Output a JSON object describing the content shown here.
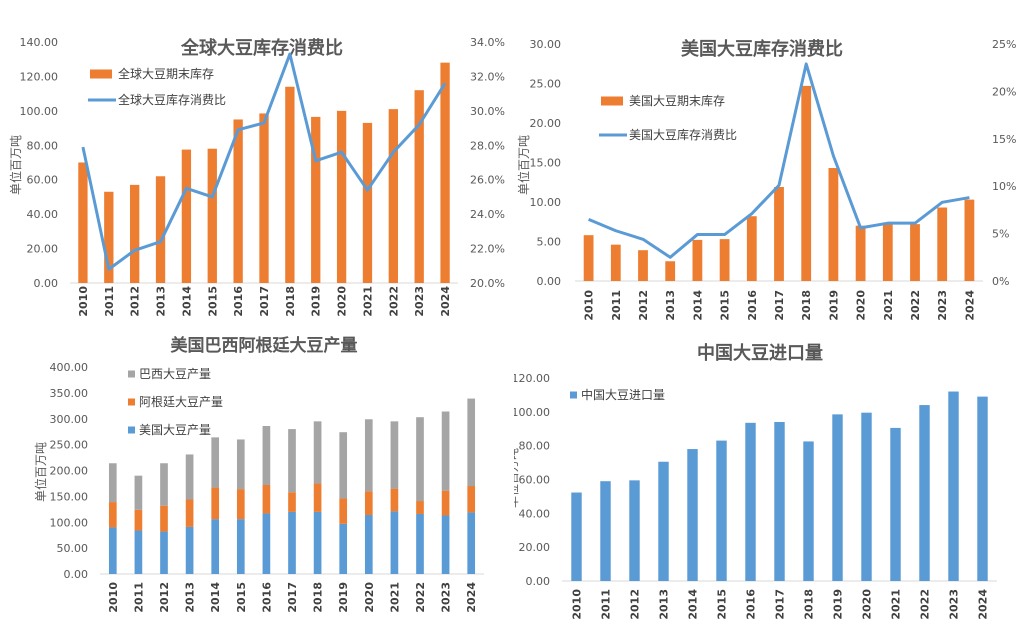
{
  "chart_data": [
    {
      "type": "bar+line",
      "title": "全球大豆库存消费比",
      "ylabel": "单位百万吨",
      "categories": [
        "2010",
        "2011",
        "2012",
        "2013",
        "2014",
        "2015",
        "2016",
        "2017",
        "2018",
        "2019",
        "2020",
        "2021",
        "2022",
        "2023",
        "2024"
      ],
      "ylim": [
        0,
        140
      ],
      "yticks": [
        "0.00",
        "20.00",
        "40.00",
        "60.00",
        "80.00",
        "100.00",
        "120.00",
        "140.00"
      ],
      "y2lim": [
        20,
        34
      ],
      "y2ticks": [
        "20.0%",
        "22.0%",
        "24.0%",
        "26.0%",
        "28.0%",
        "30.0%",
        "32.0%",
        "34.0%"
      ],
      "legend_position": "top-left",
      "series": [
        {
          "name": "全球大豆期末库存",
          "kind": "bar",
          "color": "#ED7D31",
          "values": [
            70,
            53,
            57,
            62,
            77.5,
            78,
            95,
            98.5,
            114,
            96.5,
            100,
            93,
            101,
            112,
            128
          ]
        },
        {
          "name": "全球大豆库存消费比",
          "kind": "line",
          "axis": "right",
          "color": "#5B9BD5",
          "values": [
            27.9,
            20.8,
            21.9,
            22.4,
            25.5,
            25.0,
            28.9,
            29.3,
            33.3,
            27.1,
            27.6,
            25.4,
            27.6,
            29.2,
            31.6
          ]
        }
      ]
    },
    {
      "type": "bar+line",
      "title": "美国大豆库存消费比",
      "ylabel": "单位百万吨",
      "categories": [
        "2010",
        "2011",
        "2012",
        "2013",
        "2014",
        "2015",
        "2016",
        "2017",
        "2018",
        "2019",
        "2020",
        "2021",
        "2022",
        "2023",
        "2024"
      ],
      "ylim": [
        0,
        30
      ],
      "yticks": [
        "0.00",
        "5.00",
        "10.00",
        "15.00",
        "20.00",
        "25.00",
        "30.00"
      ],
      "y2lim": [
        0,
        25
      ],
      "y2ticks": [
        "0%",
        "5%",
        "10%",
        "15%",
        "20%",
        "25%"
      ],
      "legend_position": "top-left",
      "series": [
        {
          "name": "美国大豆期末库存",
          "kind": "bar",
          "color": "#ED7D31",
          "values": [
            5.8,
            4.6,
            3.9,
            2.5,
            5.2,
            5.3,
            8.2,
            11.9,
            24.7,
            14.3,
            7.0,
            7.4,
            7.2,
            9.3,
            10.3
          ]
        },
        {
          "name": "美国大豆库存消费比",
          "kind": "line",
          "axis": "right",
          "color": "#5B9BD5",
          "values": [
            6.5,
            5.3,
            4.4,
            2.5,
            4.9,
            4.9,
            7.1,
            10.1,
            22.9,
            13.2,
            5.6,
            6.1,
            6.1,
            8.3,
            8.8
          ]
        }
      ]
    },
    {
      "type": "stacked-bar",
      "title": "美国巴西阿根廷大豆产量",
      "ylabel": "单位百万吨",
      "categories": [
        "2010",
        "2011",
        "2012",
        "2013",
        "2014",
        "2015",
        "2016",
        "2017",
        "2018",
        "2019",
        "2020",
        "2021",
        "2022",
        "2023",
        "2024"
      ],
      "ylim": [
        0,
        400
      ],
      "yticks": [
        "0.00",
        "50.00",
        "100.00",
        "150.00",
        "200.00",
        "250.00",
        "300.00",
        "350.00",
        "400.00"
      ],
      "legend_position": "top-left",
      "series": [
        {
          "name": "美国大豆产量",
          "color": "#5B9BD5",
          "values": [
            90,
            84,
            82,
            91,
            106,
            106,
            117,
            120,
            120,
            97,
            114,
            121,
            116,
            113,
            119
          ]
        },
        {
          "name": "阿根廷大豆产量",
          "color": "#ED7D31",
          "values": [
            49,
            40,
            50,
            53,
            61,
            58,
            55,
            38,
            55,
            49,
            46,
            44,
            25,
            48,
            51
          ]
        },
        {
          "name": "巴西大豆产量",
          "color": "#A5A5A5",
          "values": [
            75,
            66,
            82,
            87,
            97,
            96,
            114,
            122,
            120,
            128,
            139,
            130,
            162,
            153,
            169
          ]
        }
      ]
    },
    {
      "type": "bar",
      "title": "中国大豆进口量",
      "ylabel": "单位百万吨",
      "categories": [
        "2010",
        "2011",
        "2012",
        "2013",
        "2014",
        "2015",
        "2016",
        "2017",
        "2018",
        "2019",
        "2020",
        "2021",
        "2022",
        "2023",
        "2024"
      ],
      "ylim": [
        0,
        120
      ],
      "yticks": [
        "0.00",
        "20.00",
        "40.00",
        "60.00",
        "80.00",
        "100.00",
        "120.00"
      ],
      "legend_position": "top-left",
      "series": [
        {
          "name": "中国大豆进口量",
          "color": "#5B9BD5",
          "values": [
            52.3,
            59,
            59.5,
            70.5,
            78,
            83,
            93.5,
            94,
            82.5,
            98.5,
            99.5,
            90.5,
            104,
            112,
            109
          ]
        }
      ]
    }
  ]
}
